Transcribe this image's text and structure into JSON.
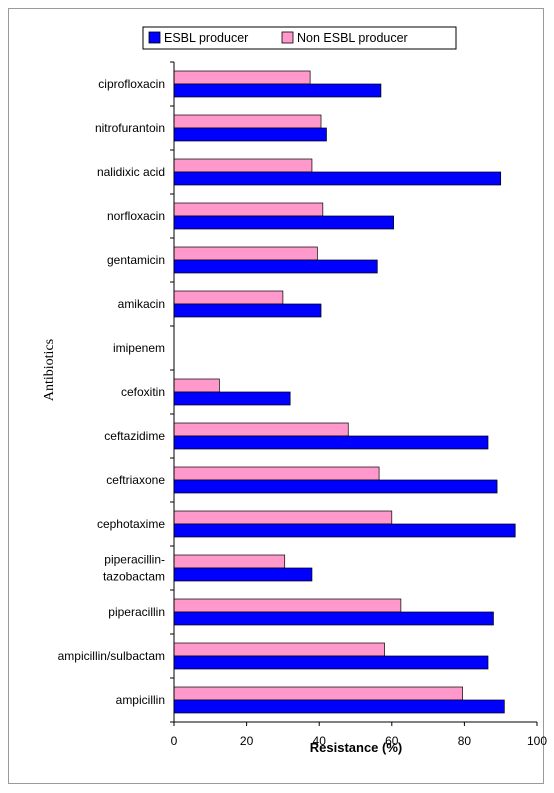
{
  "chart_data": {
    "type": "bar",
    "orientation": "horizontal",
    "categories": [
      "ciprofloxacin",
      "nitrofurantoin",
      "nalidixic acid",
      "norfloxacin",
      "gentamicin",
      "amikacin",
      "imipenem",
      "cefoxitin",
      "ceftazidime",
      "ceftriaxone",
      "cephotaxime",
      "piperacillin-tazobactam",
      "piperacillin",
      "ampicillin/sulbactam",
      "ampicillin"
    ],
    "category_lines": [
      [
        "ciprofloxacin"
      ],
      [
        "nitrofurantoin"
      ],
      [
        "nalidixic acid"
      ],
      [
        "norfloxacin"
      ],
      [
        "gentamicin"
      ],
      [
        "amikacin"
      ],
      [
        "imipenem"
      ],
      [
        "cefoxitin"
      ],
      [
        "ceftazidime"
      ],
      [
        "ceftriaxone"
      ],
      [
        "cephotaxime"
      ],
      [
        "piperacillin-",
        "tazobactam"
      ],
      [
        "piperacillin"
      ],
      [
        "ampicillin/sulbactam"
      ],
      [
        "ampicillin"
      ]
    ],
    "series": [
      {
        "name": "ESBL producer",
        "color": "#0000ff",
        "values": [
          57,
          42,
          90,
          60.5,
          56,
          40.5,
          0,
          32,
          86.5,
          89,
          94,
          38,
          88,
          86.5,
          91
        ]
      },
      {
        "name": "Non ESBL producer",
        "color": "#ff99cc",
        "values": [
          37.5,
          40.5,
          38,
          41,
          39.5,
          30,
          0,
          12.5,
          48,
          56.5,
          60,
          30.5,
          62.5,
          58,
          79.5
        ]
      }
    ],
    "xlabel": "Resistance (%)",
    "ylabel": "Antibiotics",
    "xlim": [
      0,
      100
    ],
    "xticks": [
      0,
      20,
      40,
      60,
      80,
      100
    ],
    "legend_position": "top",
    "grid": false
  }
}
